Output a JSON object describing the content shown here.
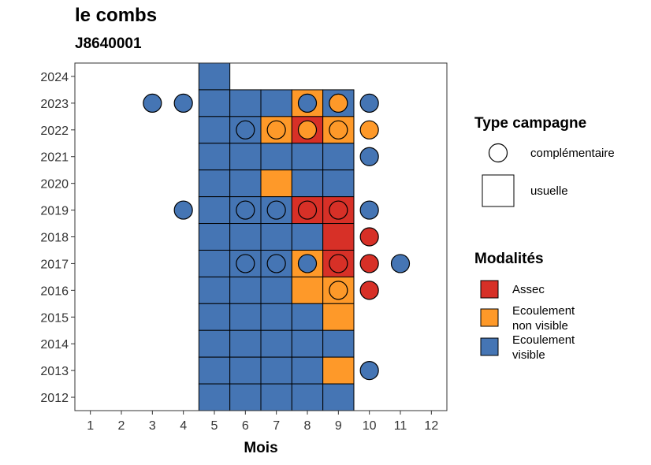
{
  "chart_data": {
    "type": "heatmap",
    "title": "le combs",
    "subtitle": "J8640001",
    "xlabel": "Mois",
    "ylabel": "",
    "x_ticks": [
      1,
      2,
      3,
      4,
      5,
      6,
      7,
      8,
      9,
      10,
      11,
      12
    ],
    "y_ticks": [
      2012,
      2013,
      2014,
      2015,
      2016,
      2017,
      2018,
      2019,
      2020,
      2021,
      2022,
      2023,
      2024
    ],
    "xlim": [
      0.5,
      12.5
    ],
    "ylim": [
      2011.5,
      2024.5
    ],
    "grid": false,
    "legend_placement": "right",
    "colors": {
      "Assec": "#d73027",
      "Ecoulement non visible": "#fe9929",
      "Ecoulement visible": "#4575b4"
    },
    "legend": {
      "type_title": "Type campagne",
      "types": [
        {
          "key": "complementaire",
          "label": "complémentaire",
          "shape": "circle"
        },
        {
          "key": "usuelle",
          "label": "usuelle",
          "shape": "square"
        }
      ],
      "modalites_title": "Modalités",
      "modalites": [
        {
          "key": "Assec",
          "lines": [
            "Assec"
          ]
        },
        {
          "key": "Ecoulement non visible",
          "lines": [
            "Ecoulement",
            "non visible"
          ]
        },
        {
          "key": "Ecoulement visible",
          "lines": [
            "Ecoulement",
            "visible"
          ]
        }
      ]
    },
    "usuelle": [
      {
        "year": 2024,
        "month": 5,
        "modalite": "Ecoulement visible"
      },
      {
        "year": 2023,
        "month": 5,
        "modalite": "Ecoulement visible"
      },
      {
        "year": 2023,
        "month": 6,
        "modalite": "Ecoulement visible"
      },
      {
        "year": 2023,
        "month": 7,
        "modalite": "Ecoulement visible"
      },
      {
        "year": 2023,
        "month": 8,
        "modalite": "Ecoulement non visible"
      },
      {
        "year": 2023,
        "month": 9,
        "modalite": "Ecoulement visible"
      },
      {
        "year": 2022,
        "month": 5,
        "modalite": "Ecoulement visible"
      },
      {
        "year": 2022,
        "month": 6,
        "modalite": "Ecoulement visible"
      },
      {
        "year": 2022,
        "month": 7,
        "modalite": "Ecoulement non visible"
      },
      {
        "year": 2022,
        "month": 8,
        "modalite": "Assec"
      },
      {
        "year": 2022,
        "month": 9,
        "modalite": "Ecoulement non visible"
      },
      {
        "year": 2021,
        "month": 5,
        "modalite": "Ecoulement visible"
      },
      {
        "year": 2021,
        "month": 6,
        "modalite": "Ecoulement visible"
      },
      {
        "year": 2021,
        "month": 7,
        "modalite": "Ecoulement visible"
      },
      {
        "year": 2021,
        "month": 8,
        "modalite": "Ecoulement visible"
      },
      {
        "year": 2021,
        "month": 9,
        "modalite": "Ecoulement visible"
      },
      {
        "year": 2020,
        "month": 5,
        "modalite": "Ecoulement visible"
      },
      {
        "year": 2020,
        "month": 6,
        "modalite": "Ecoulement visible"
      },
      {
        "year": 2020,
        "month": 7,
        "modalite": "Ecoulement non visible"
      },
      {
        "year": 2020,
        "month": 8,
        "modalite": "Ecoulement visible"
      },
      {
        "year": 2020,
        "month": 9,
        "modalite": "Ecoulement visible"
      },
      {
        "year": 2019,
        "month": 5,
        "modalite": "Ecoulement visible"
      },
      {
        "year": 2019,
        "month": 6,
        "modalite": "Ecoulement visible"
      },
      {
        "year": 2019,
        "month": 7,
        "modalite": "Ecoulement visible"
      },
      {
        "year": 2019,
        "month": 8,
        "modalite": "Assec"
      },
      {
        "year": 2019,
        "month": 9,
        "modalite": "Assec"
      },
      {
        "year": 2018,
        "month": 5,
        "modalite": "Ecoulement visible"
      },
      {
        "year": 2018,
        "month": 6,
        "modalite": "Ecoulement visible"
      },
      {
        "year": 2018,
        "month": 7,
        "modalite": "Ecoulement visible"
      },
      {
        "year": 2018,
        "month": 8,
        "modalite": "Ecoulement visible"
      },
      {
        "year": 2018,
        "month": 9,
        "modalite": "Assec"
      },
      {
        "year": 2017,
        "month": 5,
        "modalite": "Ecoulement visible"
      },
      {
        "year": 2017,
        "month": 6,
        "modalite": "Ecoulement visible"
      },
      {
        "year": 2017,
        "month": 7,
        "modalite": "Ecoulement visible"
      },
      {
        "year": 2017,
        "month": 8,
        "modalite": "Ecoulement non visible"
      },
      {
        "year": 2017,
        "month": 9,
        "modalite": "Assec"
      },
      {
        "year": 2016,
        "month": 5,
        "modalite": "Ecoulement visible"
      },
      {
        "year": 2016,
        "month": 6,
        "modalite": "Ecoulement visible"
      },
      {
        "year": 2016,
        "month": 7,
        "modalite": "Ecoulement visible"
      },
      {
        "year": 2016,
        "month": 8,
        "modalite": "Ecoulement non visible"
      },
      {
        "year": 2016,
        "month": 9,
        "modalite": "Ecoulement non visible"
      },
      {
        "year": 2015,
        "month": 5,
        "modalite": "Ecoulement visible"
      },
      {
        "year": 2015,
        "month": 6,
        "modalite": "Ecoulement visible"
      },
      {
        "year": 2015,
        "month": 7,
        "modalite": "Ecoulement visible"
      },
      {
        "year": 2015,
        "month": 8,
        "modalite": "Ecoulement visible"
      },
      {
        "year": 2015,
        "month": 9,
        "modalite": "Ecoulement non visible"
      },
      {
        "year": 2014,
        "month": 5,
        "modalite": "Ecoulement visible"
      },
      {
        "year": 2014,
        "month": 6,
        "modalite": "Ecoulement visible"
      },
      {
        "year": 2014,
        "month": 7,
        "modalite": "Ecoulement visible"
      },
      {
        "year": 2014,
        "month": 8,
        "modalite": "Ecoulement visible"
      },
      {
        "year": 2014,
        "month": 9,
        "modalite": "Ecoulement visible"
      },
      {
        "year": 2013,
        "month": 5,
        "modalite": "Ecoulement visible"
      },
      {
        "year": 2013,
        "month": 6,
        "modalite": "Ecoulement visible"
      },
      {
        "year": 2013,
        "month": 7,
        "modalite": "Ecoulement visible"
      },
      {
        "year": 2013,
        "month": 8,
        "modalite": "Ecoulement visible"
      },
      {
        "year": 2013,
        "month": 9,
        "modalite": "Ecoulement non visible"
      },
      {
        "year": 2012,
        "month": 5,
        "modalite": "Ecoulement visible"
      },
      {
        "year": 2012,
        "month": 6,
        "modalite": "Ecoulement visible"
      },
      {
        "year": 2012,
        "month": 7,
        "modalite": "Ecoulement visible"
      },
      {
        "year": 2012,
        "month": 8,
        "modalite": "Ecoulement visible"
      },
      {
        "year": 2012,
        "month": 9,
        "modalite": "Ecoulement visible"
      }
    ],
    "complementaire": [
      {
        "year": 2023,
        "month": 3,
        "modalite": "Ecoulement visible"
      },
      {
        "year": 2023,
        "month": 4,
        "modalite": "Ecoulement visible"
      },
      {
        "year": 2023,
        "month": 8,
        "modalite": "Ecoulement visible"
      },
      {
        "year": 2023,
        "month": 9,
        "modalite": "Ecoulement non visible"
      },
      {
        "year": 2023,
        "month": 10,
        "modalite": "Ecoulement visible"
      },
      {
        "year": 2022,
        "month": 6,
        "modalite": "Ecoulement visible"
      },
      {
        "year": 2022,
        "month": 7,
        "modalite": "Ecoulement non visible"
      },
      {
        "year": 2022,
        "month": 8,
        "modalite": "Ecoulement non visible"
      },
      {
        "year": 2022,
        "month": 9,
        "modalite": "Ecoulement non visible"
      },
      {
        "year": 2022,
        "month": 10,
        "modalite": "Ecoulement non visible"
      },
      {
        "year": 2021,
        "month": 10,
        "modalite": "Ecoulement visible"
      },
      {
        "year": 2019,
        "month": 4,
        "modalite": "Ecoulement visible"
      },
      {
        "year": 2019,
        "month": 6,
        "modalite": "Ecoulement visible"
      },
      {
        "year": 2019,
        "month": 7,
        "modalite": "Ecoulement visible"
      },
      {
        "year": 2019,
        "month": 8,
        "modalite": "Assec"
      },
      {
        "year": 2019,
        "month": 9,
        "modalite": "Assec"
      },
      {
        "year": 2019,
        "month": 10,
        "modalite": "Ecoulement visible"
      },
      {
        "year": 2018,
        "month": 10,
        "modalite": "Assec"
      },
      {
        "year": 2017,
        "month": 6,
        "modalite": "Ecoulement visible"
      },
      {
        "year": 2017,
        "month": 7,
        "modalite": "Ecoulement visible"
      },
      {
        "year": 2017,
        "month": 8,
        "modalite": "Ecoulement visible"
      },
      {
        "year": 2017,
        "month": 9,
        "modalite": "Assec"
      },
      {
        "year": 2017,
        "month": 10,
        "modalite": "Assec"
      },
      {
        "year": 2017,
        "month": 11,
        "modalite": "Ecoulement visible"
      },
      {
        "year": 2016,
        "month": 9,
        "modalite": "Ecoulement non visible"
      },
      {
        "year": 2016,
        "month": 10,
        "modalite": "Assec"
      },
      {
        "year": 2013,
        "month": 10,
        "modalite": "Ecoulement visible"
      }
    ]
  }
}
